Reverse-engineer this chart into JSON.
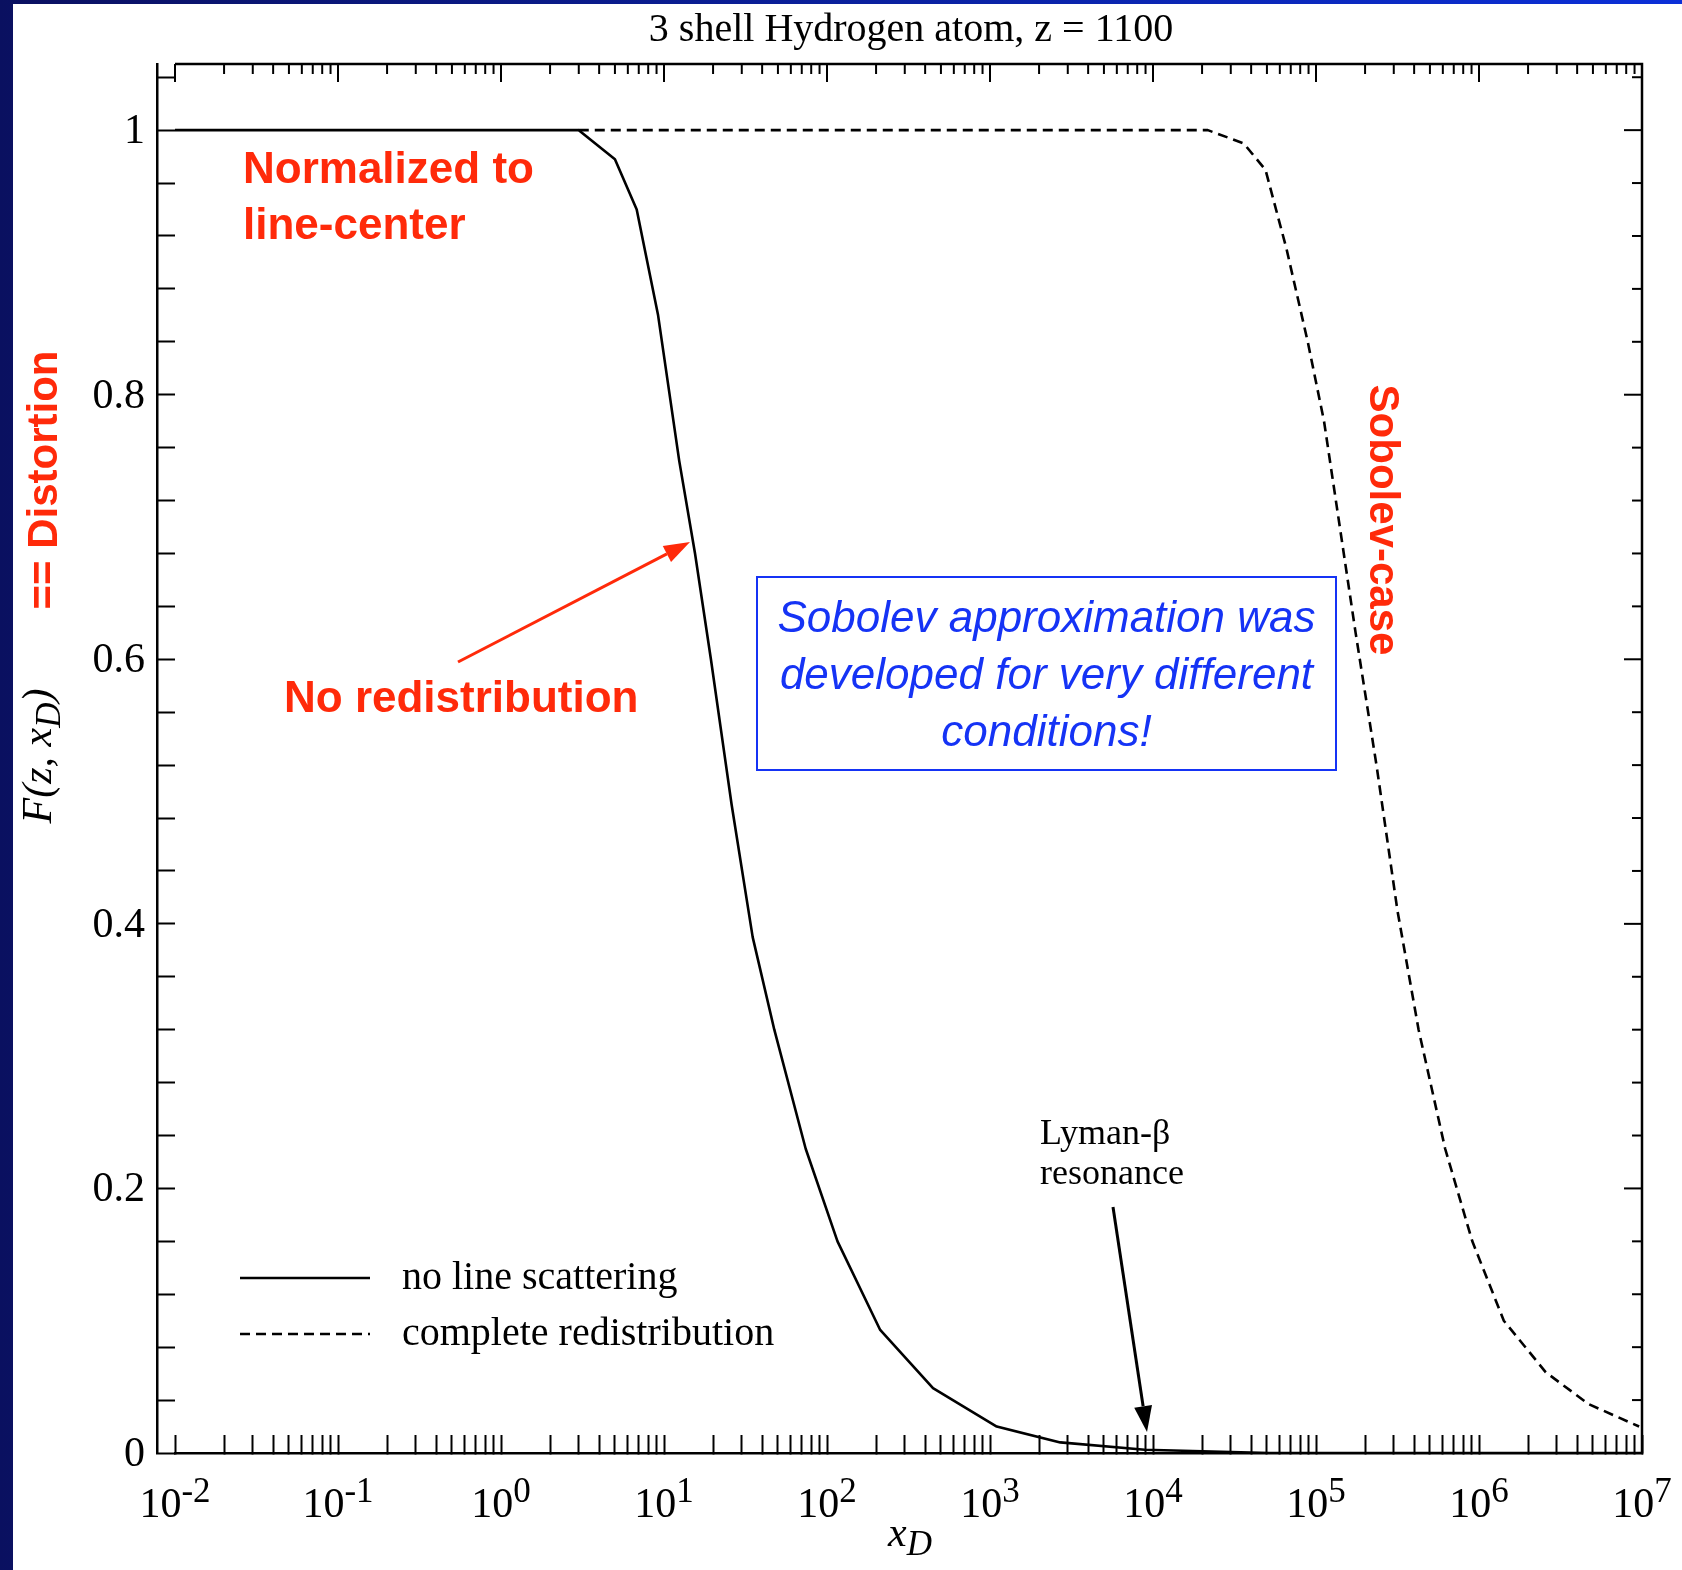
{
  "chart_data": {
    "type": "line",
    "title": "3 shell Hydrogen atom, z = 1100",
    "xlabel": "x$_{D}$",
    "ylabel": "F(z, x$_{D}$)",
    "log": "x",
    "xlim": [
      0.01,
      10000000
    ],
    "xticks": [
      {
        "value": 0.01,
        "label": "10$^{-2}$"
      },
      {
        "value": 0.1,
        "label": "10$^{-1}$"
      },
      {
        "value": 1,
        "label": "10$^{0}$"
      },
      {
        "value": 10,
        "label": "10$^{1}$"
      },
      {
        "value": 100,
        "label": "10$^{2}$"
      },
      {
        "value": 1000,
        "label": "10$^{3}$"
      },
      {
        "value": 10000,
        "label": "10$^{4}$"
      },
      {
        "value": 100000,
        "label": "10$^{5}$"
      },
      {
        "value": 1000000,
        "label": "10$^{6}$"
      },
      {
        "value": 10000000,
        "label": "10$^{7}$"
      },
      {
        "value": 0.02,
        "label": null
      },
      {
        "value": 0.03,
        "label": null
      },
      {
        "value": 0.04,
        "label": null
      },
      {
        "value": 0.05,
        "label": null
      },
      {
        "value": 0.06,
        "label": null
      },
      {
        "value": 0.07,
        "label": null
      },
      {
        "value": 0.08,
        "label": null
      },
      {
        "value": 0.09,
        "label": null
      },
      {
        "value": 0.2,
        "label": null
      },
      {
        "value": 0.3,
        "label": null
      },
      {
        "value": 0.4,
        "label": null
      },
      {
        "value": 0.5,
        "label": null
      },
      {
        "value": 0.6,
        "label": null
      },
      {
        "value": 0.7,
        "label": null
      },
      {
        "value": 0.8,
        "label": null
      },
      {
        "value": 0.9,
        "label": null
      },
      {
        "value": 2,
        "label": null
      },
      {
        "value": 3,
        "label": null
      },
      {
        "value": 4,
        "label": null
      },
      {
        "value": 5,
        "label": null
      },
      {
        "value": 6,
        "label": null
      },
      {
        "value": 7,
        "label": null
      },
      {
        "value": 8,
        "label": null
      },
      {
        "value": 9,
        "label": null
      },
      {
        "value": 20,
        "label": null
      },
      {
        "value": 30,
        "label": null
      },
      {
        "value": 40,
        "label": null
      },
      {
        "value": 50,
        "label": null
      },
      {
        "value": 60,
        "label": null
      },
      {
        "value": 70,
        "label": null
      },
      {
        "value": 80,
        "label": null
      },
      {
        "value": 90,
        "label": null
      },
      {
        "value": 200,
        "label": null
      },
      {
        "value": 300,
        "label": null
      },
      {
        "value": 400,
        "label": null
      },
      {
        "value": 500,
        "label": null
      },
      {
        "value": 600,
        "label": null
      },
      {
        "value": 700,
        "label": null
      },
      {
        "value": 800,
        "label": null
      },
      {
        "value": 900,
        "label": null
      },
      {
        "value": 2000,
        "label": null
      },
      {
        "value": 3000,
        "label": null
      },
      {
        "value": 4000,
        "label": null
      },
      {
        "value": 5000,
        "label": null
      },
      {
        "value": 6000,
        "label": null
      },
      {
        "value": 7000,
        "label": null
      },
      {
        "value": 8000,
        "label": null
      },
      {
        "value": 9000,
        "label": null
      },
      {
        "value": 20000,
        "label": null
      },
      {
        "value": 30000,
        "label": null
      },
      {
        "value": 40000,
        "label": null
      },
      {
        "value": 50000,
        "label": null
      },
      {
        "value": 60000,
        "label": null
      },
      {
        "value": 70000,
        "label": null
      },
      {
        "value": 80000,
        "label": null
      },
      {
        "value": 90000,
        "label": null
      },
      {
        "value": 200000,
        "label": null
      },
      {
        "value": 300000,
        "label": null
      },
      {
        "value": 400000,
        "label": null
      },
      {
        "value": 500000,
        "label": null
      },
      {
        "value": 600000,
        "label": null
      },
      {
        "value": 700000,
        "label": null
      },
      {
        "value": 800000,
        "label": null
      },
      {
        "value": 900000,
        "label": null
      },
      {
        "value": 2000000,
        "label": null
      },
      {
        "value": 3000000,
        "label": null
      },
      {
        "value": 4000000,
        "label": null
      },
      {
        "value": 5000000,
        "label": null
      },
      {
        "value": 6000000,
        "label": null
      },
      {
        "value": 7000000,
        "label": null
      },
      {
        "value": 8000000,
        "label": null
      },
      {
        "value": 9000000,
        "label": null
      }
    ],
    "ylim": [
      0,
      1.05
    ],
    "yticks": [
      0,
      0.2,
      0.4,
      0.6,
      0.8,
      1,
      {
        "value": 0.04,
        "label": null
      },
      {
        "value": 0.08,
        "label": null
      },
      {
        "value": 0.12,
        "label": null
      },
      {
        "value": 0.16,
        "label": null
      },
      {
        "value": 0.24,
        "label": null
      },
      {
        "value": 0.28,
        "label": null
      },
      {
        "value": 0.32,
        "label": null
      },
      {
        "value": 0.36,
        "label": null
      },
      {
        "value": 0.44,
        "label": null
      },
      {
        "value": 0.48,
        "label": null
      },
      {
        "value": 0.52,
        "label": null
      },
      {
        "value": 0.56,
        "label": null
      },
      {
        "value": 0.64,
        "label": null
      },
      {
        "value": 0.68,
        "label": null
      },
      {
        "value": 0.72,
        "label": null
      },
      {
        "value": 0.76,
        "label": null
      },
      {
        "value": 0.84,
        "label": null
      },
      {
        "value": 0.88,
        "label": null
      },
      {
        "value": 0.92,
        "label": null
      },
      {
        "value": 0.96,
        "label": null
      },
      {
        "value": 1.04,
        "label": null
      }
    ],
    "legend": "bottom left",
    "marker": "none",
    "series": [
      {
        "name": "no line scattering",
        "color": "#000000",
        "line_style": "solid",
        "x": [
          0.01,
          3,
          5,
          6.8,
          9.2,
          12.4,
          15.5,
          19.4,
          26,
          35,
          47.5,
          74,
          116,
          212,
          447,
          1100,
          2700,
          8900,
          52000,
          10000000
        ],
        "values": [
          1,
          1,
          0.978,
          0.94,
          0.86,
          0.75,
          0.68,
          0.6,
          0.49,
          0.39,
          0.32,
          0.23,
          0.16,
          0.093,
          0.049,
          0.02,
          0.008,
          0.0025,
          0,
          0
        ]
      },
      {
        "name": "complete redistribution",
        "color": "#000000",
        "line_style": "dashed",
        "x": [
          3,
          21700,
          36000,
          49000,
          66000,
          89000,
          112000,
          140000,
          175000,
          235000,
          316000,
          426000,
          620000,
          910000,
          1420000,
          2570000,
          4700000,
          9600000
        ],
        "values": [
          1,
          1,
          0.99,
          0.97,
          0.91,
          0.84,
          0.78,
          0.7,
          0.62,
          0.52,
          0.41,
          0.32,
          0.23,
          0.16,
          0.1,
          0.061,
          0.037,
          0.02
        ]
      }
    ],
    "annotations": [
      "Normalized to line-center",
      "== Distortion",
      "No redistribution",
      "Sobolev approximation was developed for very different conditions!",
      "Sobolev-case",
      "Lyman-β resonance"
    ]
  }
}
